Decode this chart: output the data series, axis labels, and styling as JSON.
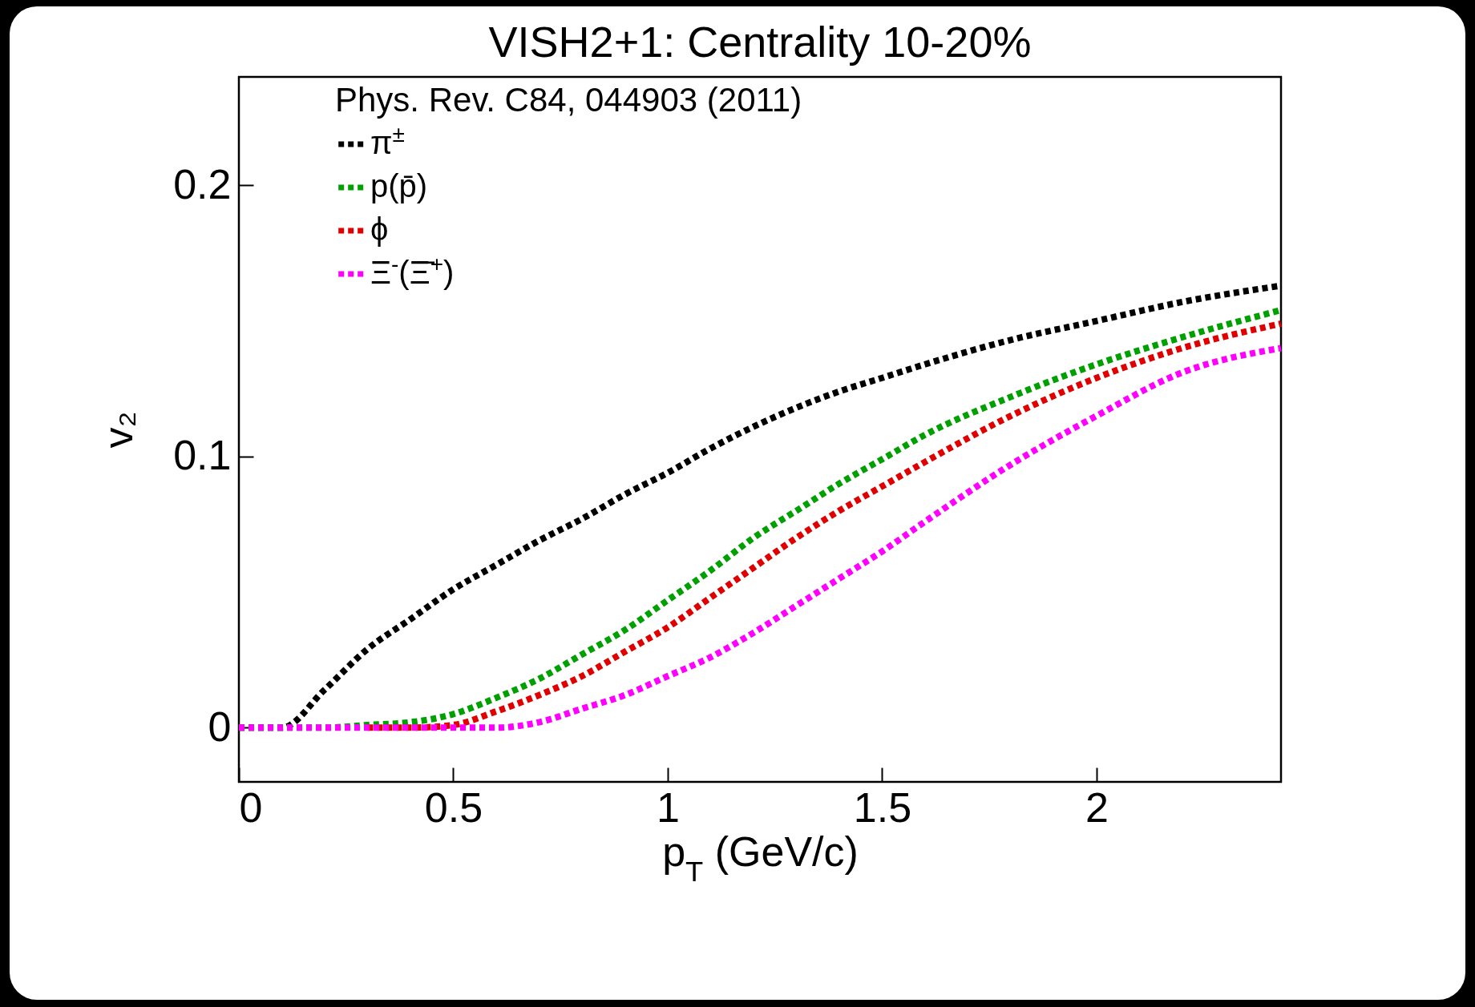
{
  "chart_data": {
    "type": "line",
    "title": "VISH2+1: Centrality 10-20%",
    "xlabel": "p$_{T}$ (GeV/c)",
    "ylabel": "v₂",
    "legend_title": "Phys. Rev. C84, 044903 (2011)",
    "legend": "top left",
    "line_style": "dotted",
    "grid": false,
    "x": [
      0,
      0.1,
      0.2,
      0.3,
      0.4,
      0.5,
      0.6,
      0.7,
      0.8,
      0.9,
      1.0,
      1.1,
      1.2,
      1.3,
      1.4,
      1.5,
      1.6,
      1.8,
      2.0,
      2.2,
      2.43
    ],
    "series": [
      {
        "name": "π$^{±}$",
        "color": "#000000",
        "values": [
          0,
          0,
          0.014,
          0.029,
          0.04,
          0.051,
          0.06,
          0.069,
          0.077,
          0.086,
          0.094,
          0.103,
          0.111,
          0.118,
          0.124,
          0.129,
          0.134,
          0.143,
          0.15,
          0.157,
          0.163
        ]
      },
      {
        "name": "p(p̄)",
        "color": "#00a000",
        "values": [
          0,
          0,
          0,
          0.001,
          0.002,
          0.005,
          0.011,
          0.018,
          0.027,
          0.036,
          0.047,
          0.058,
          0.07,
          0.08,
          0.09,
          0.099,
          0.108,
          0.122,
          0.134,
          0.144,
          0.154
        ]
      },
      {
        "name": "ϕ",
        "color": "#e00000",
        "values": [
          null,
          null,
          null,
          0,
          0,
          0.001,
          0.006,
          0.012,
          0.019,
          0.028,
          0.037,
          0.048,
          0.059,
          0.07,
          0.08,
          0.089,
          0.098,
          0.115,
          0.129,
          0.14,
          0.149
        ]
      },
      {
        "name": "Ξ$^{-}$(Ξ̄$^{+}$)",
        "color": "#ff00ff",
        "values": [
          0,
          0,
          0,
          0,
          0,
          0,
          0,
          0.002,
          0.007,
          0.012,
          0.019,
          0.026,
          0.035,
          0.045,
          0.055,
          0.065,
          0.076,
          0.097,
          0.115,
          0.131,
          0.14
        ]
      }
    ],
    "xlim": [
      0,
      2.43
    ],
    "xticks": [
      0,
      0.5,
      1,
      1.5,
      2
    ],
    "ylim": [
      -0.02,
      0.24
    ],
    "yticks": [
      0,
      0.1,
      0.2
    ]
  }
}
